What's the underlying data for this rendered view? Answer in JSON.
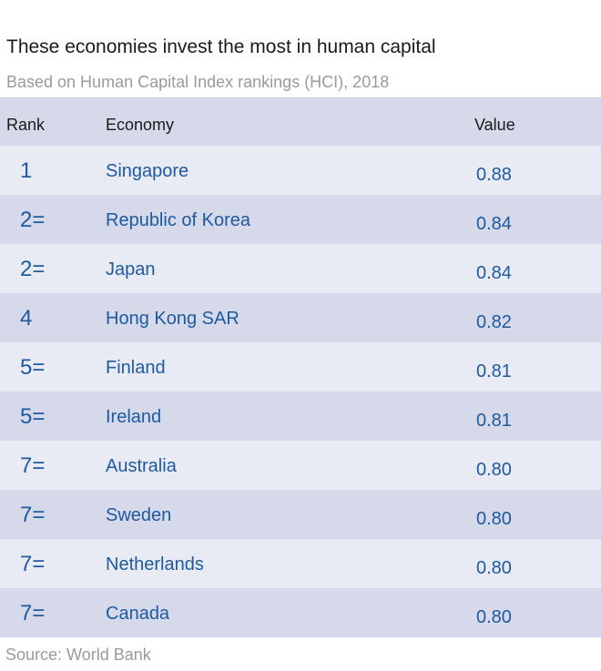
{
  "chart_data": {
    "type": "table",
    "title": "These economies invest the most in human capital",
    "subtitle": "Based on Human Capital Index rankings (HCI), 2018",
    "columns": [
      "Rank",
      "Economy",
      "Value"
    ],
    "rows": [
      {
        "rank": "1",
        "economy": "Singapore",
        "value": "0.88"
      },
      {
        "rank": "2=",
        "economy": "Republic of Korea",
        "value": "0.84"
      },
      {
        "rank": "2=",
        "economy": "Japan",
        "value": "0.84"
      },
      {
        "rank": "4",
        "economy": "Hong Kong SAR",
        "value": "0.82"
      },
      {
        "rank": "5=",
        "economy": "Finland",
        "value": "0.81"
      },
      {
        "rank": "5=",
        "economy": "Ireland",
        "value": "0.81"
      },
      {
        "rank": "7=",
        "economy": "Australia",
        "value": "0.80"
      },
      {
        "rank": "7=",
        "economy": "Sweden",
        "value": "0.80"
      },
      {
        "rank": "7=",
        "economy": "Netherlands",
        "value": "0.80"
      },
      {
        "rank": "7=",
        "economy": "Canada",
        "value": "0.80"
      }
    ],
    "source": "Source:  World Bank"
  },
  "colors": {
    "header_bg": "#d5d9ea",
    "row_light": "#e9ebf4",
    "row_dark": "#d5d9ea",
    "value_text": "#1e5aa0",
    "muted_text": "#9a9a9a"
  }
}
